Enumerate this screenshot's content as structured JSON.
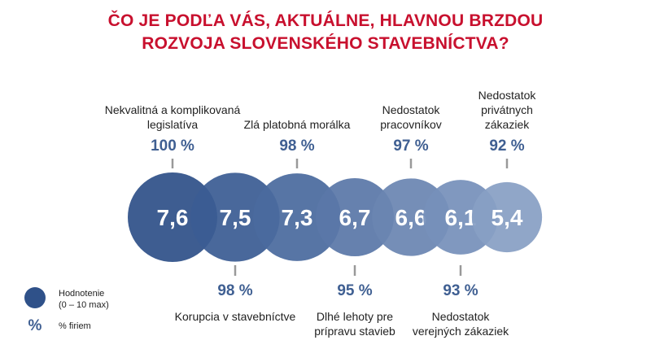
{
  "chart_data": {
    "type": "bubble",
    "title": [
      "ČO JE PODĽA VÁS, AKTUÁLNE, HLAVNOU BRZDOU",
      "ROZVOJA SLOVENSKÉHO STAVEBNÍCTVA?"
    ],
    "items": [
      {
        "label": [
          "Nekvalitná a komplikovaná",
          "legislatíva"
        ],
        "rating": "7,6",
        "percent": "100 %",
        "value": 7.6,
        "pct": 100,
        "position": "top",
        "color": "#2f5189"
      },
      {
        "label": [
          "Korupcia v stavebníctve"
        ],
        "rating": "7,5",
        "percent": "98 %",
        "value": 7.5,
        "pct": 98,
        "position": "bottom",
        "color": "#3b5c93"
      },
      {
        "label": [
          "Zlá platobná morálka"
        ],
        "rating": "7,3",
        "percent": "98 %",
        "value": 7.3,
        "pct": 98,
        "position": "top",
        "color": "#4a6a9e"
      },
      {
        "label": [
          "Dlhé lehoty pre",
          "prípravu stavieb"
        ],
        "rating": "6,7",
        "percent": "95 %",
        "value": 6.7,
        "pct": 95,
        "position": "bottom",
        "color": "#5a77a8"
      },
      {
        "label": [
          "Nedostatok",
          "pracovníkov"
        ],
        "rating": "6,6",
        "percent": "97 %",
        "value": 6.6,
        "pct": 97,
        "position": "top",
        "color": "#6a85b2"
      },
      {
        "label": [
          "Nedostatok",
          "verejných zákaziek"
        ],
        "rating": "6,1",
        "percent": "93 %",
        "value": 6.1,
        "pct": 93,
        "position": "bottom",
        "color": "#7690ba"
      },
      {
        "label": [
          "Nedostatok",
          "privátnych",
          "zákaziek"
        ],
        "rating": "5,4",
        "percent": "92 %",
        "value": 5.4,
        "pct": 92,
        "position": "top",
        "color": "#889fc4"
      }
    ],
    "legend": {
      "circle_label": [
        "Hodnotenie",
        "(0 – 10 max)"
      ],
      "pct_symbol": "%",
      "pct_label": "% firiem"
    }
  }
}
